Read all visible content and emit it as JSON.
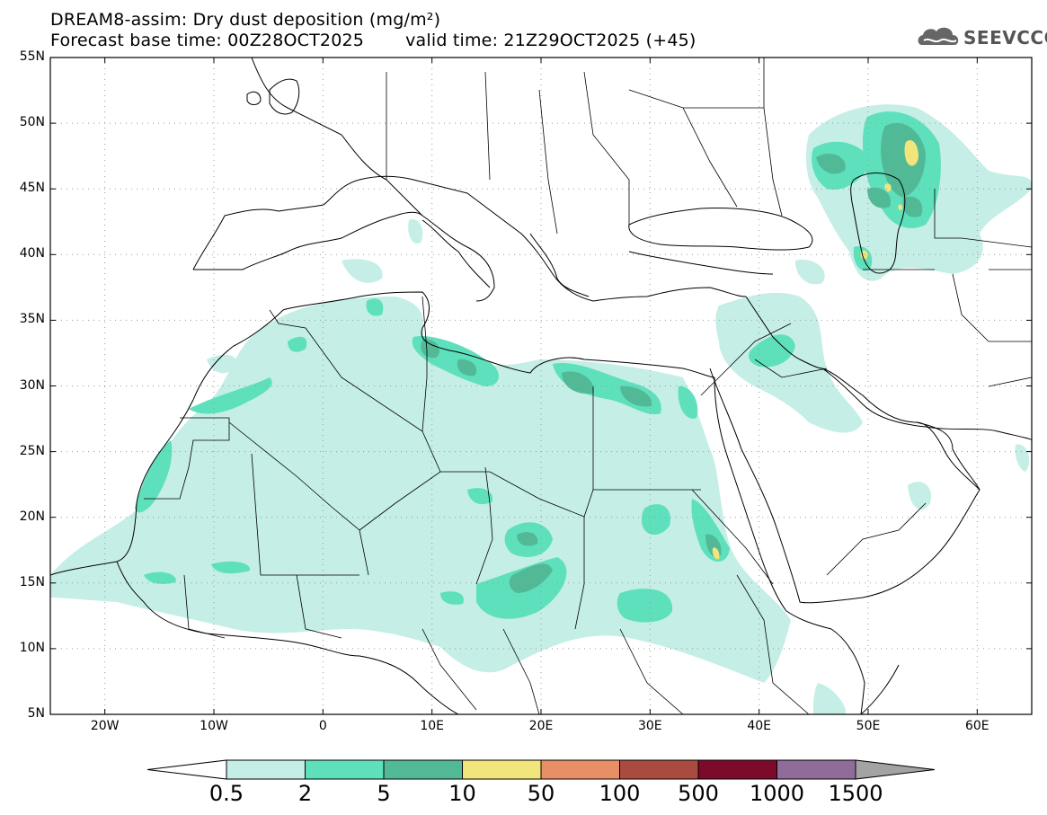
{
  "title": {
    "line1": "DREAM8-assim: Dry dust deposition (mg/m²)",
    "base_time": "Forecast base time: 00Z28OCT2025",
    "valid_time": "valid time: 21Z29OCT2025 (+45)"
  },
  "logo": {
    "text": "SEEVCCC",
    "icon": "cloud-logo-icon"
  },
  "map": {
    "projection": "lat-lon",
    "lon_range": [
      -25,
      65
    ],
    "lat_range": [
      5,
      55
    ],
    "graticule": "dotted",
    "lat_labels": [
      "55N",
      "50N",
      "45N",
      "40N",
      "35N",
      "30N",
      "25N",
      "20N",
      "15N",
      "10N",
      "5N"
    ],
    "lon_labels": [
      "20W",
      "10W",
      "0",
      "10E",
      "20E",
      "30E",
      "40E",
      "50E",
      "60E"
    ]
  },
  "legend": {
    "levels": [
      "0.5",
      "2",
      "5",
      "10",
      "50",
      "100",
      "500",
      "1000",
      "1500"
    ],
    "colors": [
      "#c4eee6",
      "#5ee0bd",
      "#52b996",
      "#f2e57c",
      "#e88f66",
      "#a94b3f",
      "#7c0a2b",
      "#8f6c99",
      "#a3a3a3"
    ],
    "below_color": "#ffffff"
  }
}
